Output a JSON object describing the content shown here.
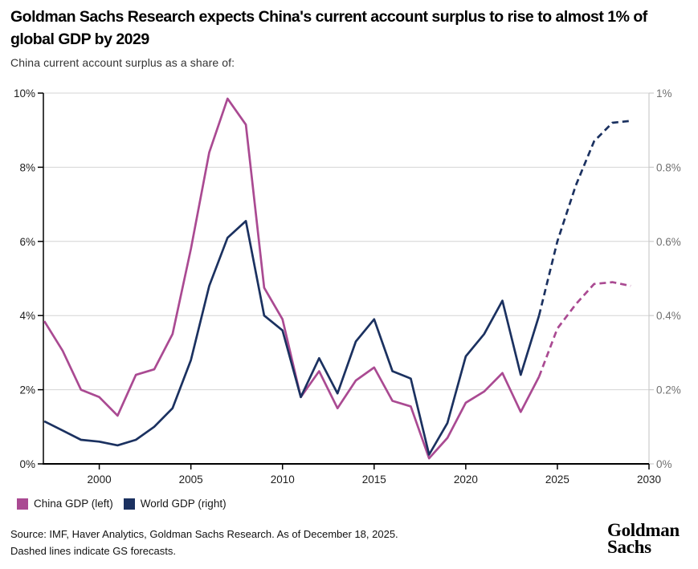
{
  "header": {
    "title": "Goldman Sachs Research expects China's current account surplus to rise to almost 1% of global GDP by 2029",
    "subtitle": "China current account surplus as a share of:"
  },
  "chart_data": {
    "type": "line",
    "title": "China current account surplus as a share of China GDP (left) and World GDP (right)",
    "x": [
      1997,
      1998,
      1999,
      2000,
      2001,
      2002,
      2003,
      2004,
      2005,
      2006,
      2007,
      2008,
      2009,
      2010,
      2011,
      2012,
      2013,
      2014,
      2015,
      2016,
      2017,
      2018,
      2019,
      2020,
      2021,
      2022,
      2023,
      2024,
      2025,
      2026,
      2027,
      2028,
      2029
    ],
    "series": [
      {
        "name": "China GDP (left)",
        "axis": "left",
        "color": "#aa4a92",
        "solid_until": 2024,
        "forecast_style": "dashed",
        "values": [
          3.85,
          3.05,
          2.0,
          1.8,
          1.3,
          2.4,
          2.55,
          3.5,
          5.8,
          8.4,
          9.85,
          9.15,
          4.75,
          3.9,
          1.8,
          2.5,
          1.5,
          2.25,
          2.6,
          1.7,
          1.55,
          0.15,
          0.7,
          1.65,
          1.95,
          2.45,
          1.4,
          2.35,
          3.65,
          4.3,
          4.85,
          4.9,
          4.8
        ]
      },
      {
        "name": "World GDP (right)",
        "axis": "right",
        "color": "#1b3160",
        "solid_until": 2024,
        "forecast_style": "dashed",
        "values": [
          0.115,
          0.09,
          0.065,
          0.06,
          0.05,
          0.065,
          0.1,
          0.15,
          0.28,
          0.48,
          0.61,
          0.655,
          0.4,
          0.36,
          0.18,
          0.285,
          0.19,
          0.33,
          0.39,
          0.25,
          0.23,
          0.025,
          0.11,
          0.29,
          0.35,
          0.44,
          0.24,
          0.4,
          0.6,
          0.75,
          0.87,
          0.92,
          0.925
        ]
      }
    ],
    "left_axis": {
      "min": 0,
      "max": 10,
      "tick_values": [
        0,
        2,
        4,
        6,
        8,
        10
      ],
      "tick_labels": [
        "0%",
        "2%",
        "4%",
        "6%",
        "8%",
        "10%"
      ]
    },
    "right_axis": {
      "min": 0,
      "max": 1,
      "tick_values": [
        0,
        0.2,
        0.4,
        0.6,
        0.8,
        1
      ],
      "tick_labels": [
        "0%",
        "0.2%",
        "0.4%",
        "0.6%",
        "0.8%",
        "1%"
      ]
    },
    "x_axis": {
      "min": 1996.95,
      "max": 2030,
      "tick_values": [
        2000,
        2005,
        2010,
        2015,
        2020,
        2025,
        2030
      ],
      "tick_labels": [
        "2000",
        "2005",
        "2010",
        "2015",
        "2020",
        "2025",
        "2030"
      ]
    },
    "grid": true,
    "legend_position": "bottom-left",
    "forecast_note": "Dashed segments from 2024 onward are GS forecasts"
  },
  "legend": {
    "items": [
      {
        "label": "China GDP (left)",
        "color": "#aa4a92"
      },
      {
        "label": "World GDP (right)",
        "color": "#1b3160"
      }
    ]
  },
  "footer": {
    "source_line1": "Source: IMF, Haver Analytics, Goldman Sachs Research. As of December 18, 2025.",
    "source_line2": "Dashed lines indicate GS forecasts.",
    "logo": {
      "line1": "Goldman",
      "line2": "Sachs"
    }
  },
  "colors": {
    "china_line": "#aa4a92",
    "world_line": "#1b3160",
    "grid": "#d4d4d4",
    "axis": "#000000",
    "right_axis": "#cbcbcb",
    "right_tick_label": "#707070",
    "tick_label": "#1d1d1d"
  }
}
